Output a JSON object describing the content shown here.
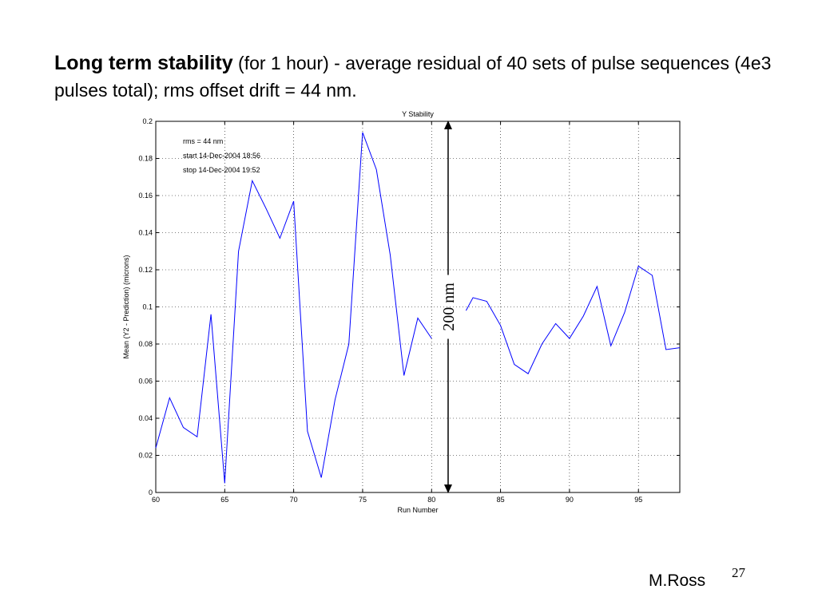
{
  "slide": {
    "title_bold": "Long term stability",
    "title_rest_small": " (for 1 hour)",
    "title_rest": " - average residual of 40 sets of pulse sequences (4e3 pulses total); rms offset drift = 44 nm.",
    "author": "M.Ross",
    "page_number": "27"
  },
  "chart_data": {
    "type": "line",
    "title": "Y Stability",
    "xlabel": "Run Number",
    "ylabel": "Mean (Y2 - Prediction) (microns)",
    "xlim": [
      60,
      98
    ],
    "ylim": [
      0,
      0.2
    ],
    "xticks": [
      60,
      65,
      70,
      75,
      80,
      85,
      90,
      95
    ],
    "yticks": [
      0,
      0.02,
      0.04,
      0.06,
      0.08,
      0.1,
      0.12,
      0.14,
      0.16,
      0.18,
      0.2
    ],
    "grid": true,
    "line_color": "#0000ff",
    "annotations": [
      "rms = 44 nm",
      "start 14-Dec-2004 18:56",
      "stop 14-Dec-2004 19:52"
    ],
    "dimension_label": "200 nm",
    "dimension_range": [
      0,
      0.2
    ],
    "dimension_x": 81.2,
    "series": [
      {
        "x": [
          60,
          61,
          62,
          63,
          64,
          65,
          66,
          67,
          68,
          69,
          70,
          71,
          72,
          73,
          74,
          75,
          76,
          77,
          78,
          79,
          80
        ],
        "values": [
          0.024,
          0.051,
          0.035,
          0.03,
          0.096,
          0.005,
          0.13,
          0.168,
          0.153,
          0.137,
          0.157,
          0.033,
          0.008,
          0.05,
          0.08,
          0.194,
          0.174,
          0.128,
          0.063,
          0.094,
          0.083
        ]
      },
      {
        "x": [
          82.5,
          83,
          84,
          85,
          86,
          87,
          88,
          89,
          90,
          91,
          92,
          93,
          94,
          95,
          96,
          97,
          98
        ],
        "values": [
          0.098,
          0.105,
          0.103,
          0.09,
          0.069,
          0.064,
          0.08,
          0.091,
          0.083,
          0.095,
          0.111,
          0.079,
          0.097,
          0.122,
          0.117,
          0.077,
          0.078
        ]
      }
    ]
  }
}
